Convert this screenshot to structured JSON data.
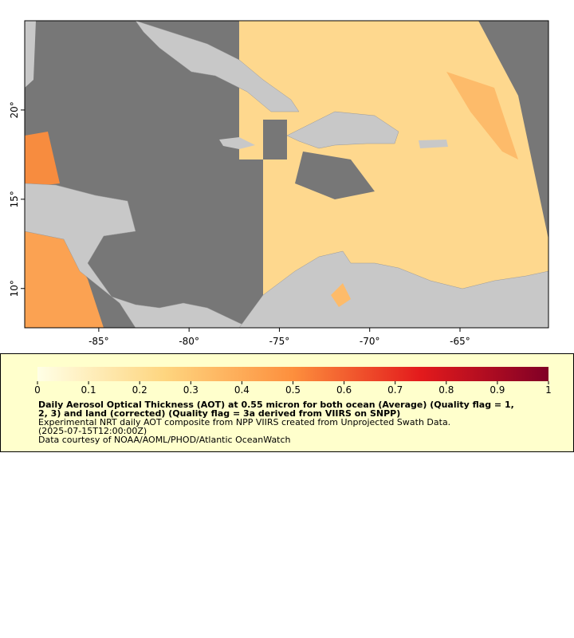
{
  "map": {
    "xlim": [
      -89.1,
      -60.1
    ],
    "ylim": [
      7.8,
      25
    ],
    "xticks": [
      {
        "value": -85,
        "label": "-85°"
      },
      {
        "value": -80,
        "label": "-80°"
      },
      {
        "value": -75,
        "label": "-75°"
      },
      {
        "value": -70,
        "label": "-70°"
      },
      {
        "value": -65,
        "label": "-65°"
      }
    ],
    "yticks": [
      {
        "value": 10,
        "label": "10°"
      },
      {
        "value": 15,
        "label": "15°"
      },
      {
        "value": 20,
        "label": "20°"
      }
    ]
  },
  "colorbar": {
    "range": [
      0,
      1
    ],
    "ticks": [
      0,
      0.1,
      0.2,
      0.3,
      0.4,
      0.5,
      0.6,
      0.7,
      0.8,
      0.9,
      1
    ]
  },
  "caption": {
    "title_lines": [
      "Daily Aerosol Optical Thickness (AOT) at 0.55 micron for both ocean (Average) (Quality flag = 1,",
      "2, 3) and land (corrected) (Quality flag = 3a derived from VIIRS on SNPP)"
    ],
    "lines": [
      "Experimental NRT daily AOT composite from NPP VIIRS created from Unprojected Swath Data.",
      "(2025-07-15T12:00:00Z)",
      "Data courtesy of NOAA/AOML/PHOD/Atlantic OceanWatch"
    ]
  }
}
